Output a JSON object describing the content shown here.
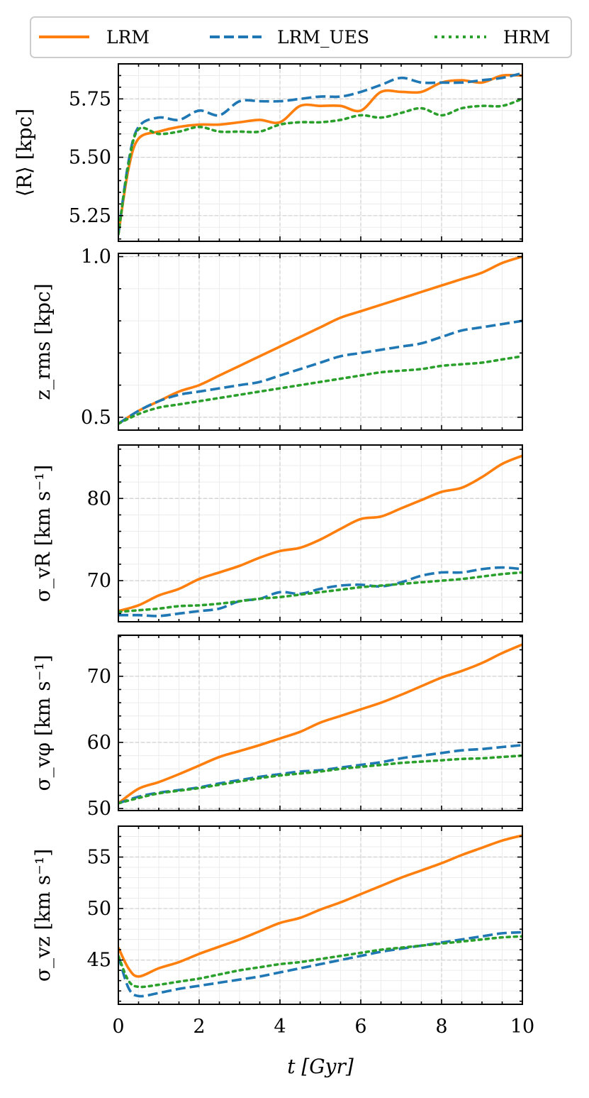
{
  "figure": {
    "xlabel": "t [Gyr]",
    "legend": {
      "placement": "top",
      "entries": [
        {
          "label": "LRM",
          "color": "#ff7f0e",
          "style": "solid"
        },
        {
          "label": "LRM_UES",
          "color": "#1f77b4",
          "style": "dashed"
        },
        {
          "label": "HRM",
          "color": "#2ca02c",
          "style": "dotted"
        }
      ]
    }
  },
  "chart_data": [
    {
      "type": "line",
      "ylabel": "⟨R⟩ [kpc]",
      "xlim": [
        0,
        10
      ],
      "ylim": [
        5.14,
        5.9
      ],
      "yticks": [
        5.25,
        5.5,
        5.75
      ],
      "ytick_labels": [
        "5.25",
        "5.50",
        "5.75"
      ],
      "x": [
        0,
        0.25,
        0.5,
        1,
        1.5,
        2,
        2.5,
        3,
        3.5,
        4,
        4.5,
        5,
        5.5,
        6,
        6.5,
        7,
        7.5,
        8,
        8.5,
        9,
        9.5,
        10
      ],
      "series": [
        {
          "name": "LRM",
          "values": [
            5.17,
            5.45,
            5.58,
            5.61,
            5.63,
            5.64,
            5.64,
            5.65,
            5.66,
            5.65,
            5.72,
            5.72,
            5.72,
            5.7,
            5.78,
            5.78,
            5.78,
            5.82,
            5.83,
            5.82,
            5.85,
            5.85
          ]
        },
        {
          "name": "LRM_UES",
          "values": [
            5.17,
            5.48,
            5.63,
            5.67,
            5.66,
            5.7,
            5.68,
            5.74,
            5.74,
            5.74,
            5.75,
            5.76,
            5.76,
            5.78,
            5.81,
            5.84,
            5.82,
            5.82,
            5.82,
            5.83,
            5.84,
            5.86
          ]
        },
        {
          "name": "HRM",
          "values": [
            5.17,
            5.47,
            5.62,
            5.6,
            5.61,
            5.63,
            5.61,
            5.61,
            5.61,
            5.64,
            5.65,
            5.65,
            5.66,
            5.68,
            5.67,
            5.69,
            5.71,
            5.68,
            5.71,
            5.72,
            5.72,
            5.75
          ]
        }
      ]
    },
    {
      "type": "line",
      "ylabel": "z_rms [kpc]",
      "xlim": [
        0,
        10
      ],
      "ylim": [
        0.46,
        1.01
      ],
      "yticks": [
        0.5,
        1.0
      ],
      "ytick_labels": [
        "0.5",
        "1.0"
      ],
      "x": [
        0,
        0.5,
        1,
        1.5,
        2,
        2.5,
        3,
        3.5,
        4,
        4.5,
        5,
        5.5,
        6,
        6.5,
        7,
        7.5,
        8,
        8.5,
        9,
        9.5,
        10
      ],
      "series": [
        {
          "name": "LRM",
          "values": [
            0.48,
            0.52,
            0.55,
            0.58,
            0.6,
            0.63,
            0.66,
            0.69,
            0.72,
            0.75,
            0.78,
            0.81,
            0.83,
            0.85,
            0.87,
            0.89,
            0.91,
            0.93,
            0.95,
            0.98,
            1.0
          ]
        },
        {
          "name": "LRM_UES",
          "values": [
            0.48,
            0.52,
            0.55,
            0.57,
            0.58,
            0.59,
            0.6,
            0.61,
            0.63,
            0.65,
            0.67,
            0.69,
            0.7,
            0.71,
            0.72,
            0.73,
            0.75,
            0.77,
            0.78,
            0.79,
            0.8
          ]
        },
        {
          "name": "HRM",
          "values": [
            0.48,
            0.51,
            0.53,
            0.54,
            0.55,
            0.56,
            0.57,
            0.58,
            0.59,
            0.6,
            0.61,
            0.62,
            0.63,
            0.64,
            0.645,
            0.65,
            0.66,
            0.665,
            0.67,
            0.68,
            0.69
          ]
        }
      ]
    },
    {
      "type": "line",
      "ylabel": "σ_vR [km s⁻¹]",
      "xlim": [
        0,
        10
      ],
      "ylim": [
        65.0,
        86.5
      ],
      "yticks": [
        70,
        80
      ],
      "ytick_labels": [
        "70",
        "80"
      ],
      "x": [
        0,
        0.5,
        1,
        1.5,
        2,
        2.5,
        3,
        3.5,
        4,
        4.5,
        5,
        5.5,
        6,
        6.5,
        7,
        7.5,
        8,
        8.5,
        9,
        9.5,
        10
      ],
      "series": [
        {
          "name": "LRM",
          "values": [
            66.3,
            67.0,
            68.2,
            69.0,
            70.2,
            71.0,
            71.8,
            72.8,
            73.6,
            74.0,
            75.0,
            76.3,
            77.5,
            77.8,
            78.8,
            79.8,
            80.8,
            81.3,
            82.6,
            84.2,
            85.2
          ]
        },
        {
          "name": "LRM_UES",
          "values": [
            65.8,
            65.8,
            65.7,
            66.0,
            66.3,
            66.6,
            67.5,
            67.8,
            68.6,
            68.4,
            69.0,
            69.4,
            69.5,
            69.3,
            69.8,
            70.6,
            71.0,
            71.0,
            71.4,
            71.6,
            71.4
          ]
        },
        {
          "name": "HRM",
          "values": [
            66.2,
            66.4,
            66.6,
            66.9,
            67.0,
            67.2,
            67.5,
            67.8,
            68.0,
            68.3,
            68.6,
            68.9,
            69.2,
            69.4,
            69.6,
            69.8,
            70.0,
            70.2,
            70.5,
            70.8,
            71.0
          ]
        }
      ]
    },
    {
      "type": "line",
      "ylabel": "σ_vφ [km s⁻¹]",
      "xlim": [
        0,
        10
      ],
      "ylim": [
        49.7,
        76.2
      ],
      "yticks": [
        50,
        60,
        70
      ],
      "ytick_labels": [
        "50",
        "60",
        "70"
      ],
      "x": [
        0,
        0.5,
        1,
        1.5,
        2,
        2.5,
        3,
        3.5,
        4,
        4.5,
        5,
        5.5,
        6,
        6.5,
        7,
        7.5,
        8,
        8.5,
        9,
        9.5,
        10
      ],
      "series": [
        {
          "name": "LRM",
          "values": [
            50.8,
            53.0,
            54.0,
            55.2,
            56.5,
            57.8,
            58.7,
            59.6,
            60.6,
            61.6,
            63.0,
            64.0,
            65.0,
            66.0,
            67.2,
            68.5,
            69.8,
            70.8,
            72.0,
            73.5,
            74.8
          ]
        },
        {
          "name": "LRM_UES",
          "values": [
            50.8,
            51.8,
            52.4,
            52.8,
            53.2,
            53.8,
            54.3,
            54.8,
            55.2,
            55.6,
            55.8,
            56.2,
            56.6,
            57.0,
            57.6,
            58.0,
            58.4,
            58.8,
            59.0,
            59.3,
            59.6
          ]
        },
        {
          "name": "HRM",
          "values": [
            50.8,
            51.6,
            52.3,
            52.7,
            53.1,
            53.6,
            54.1,
            54.6,
            55.0,
            55.3,
            55.6,
            56.0,
            56.3,
            56.6,
            56.9,
            57.1,
            57.3,
            57.5,
            57.6,
            57.8,
            58.0
          ]
        }
      ]
    },
    {
      "type": "line",
      "ylabel": "σ_vz [km s⁻¹]",
      "xlim": [
        0,
        10
      ],
      "ylim": [
        40.7,
        58.0
      ],
      "yticks": [
        45,
        50,
        55
      ],
      "ytick_labels": [
        "45",
        "50",
        "55"
      ],
      "x": [
        0,
        0.25,
        0.5,
        1,
        1.5,
        2,
        2.5,
        3,
        3.5,
        4,
        4.5,
        5,
        5.5,
        6,
        6.5,
        7,
        7.5,
        8,
        8.5,
        9,
        9.5,
        10
      ],
      "series": [
        {
          "name": "LRM",
          "values": [
            46.2,
            44.2,
            43.4,
            44.2,
            44.8,
            45.6,
            46.3,
            47.0,
            47.8,
            48.6,
            49.1,
            49.9,
            50.6,
            51.4,
            52.2,
            53.0,
            53.7,
            54.4,
            55.2,
            55.9,
            56.6,
            57.1
          ]
        },
        {
          "name": "LRM_UES",
          "values": [
            45.4,
            42.3,
            41.5,
            41.8,
            42.2,
            42.5,
            42.8,
            43.1,
            43.4,
            43.8,
            44.2,
            44.6,
            45.0,
            45.4,
            45.8,
            46.1,
            46.4,
            46.7,
            47.0,
            47.3,
            47.6,
            47.7
          ]
        },
        {
          "name": "HRM",
          "values": [
            45.4,
            43.0,
            42.4,
            42.6,
            42.9,
            43.2,
            43.6,
            44.0,
            44.3,
            44.6,
            44.8,
            45.1,
            45.4,
            45.7,
            46.0,
            46.2,
            46.4,
            46.6,
            46.8,
            47.0,
            47.2,
            47.3
          ]
        }
      ]
    }
  ],
  "shared_x": {
    "xlim": [
      0,
      10
    ],
    "xticks": [
      0,
      2,
      4,
      6,
      8,
      10
    ],
    "xtick_labels": [
      "0",
      "2",
      "4",
      "6",
      "8",
      "10"
    ]
  }
}
